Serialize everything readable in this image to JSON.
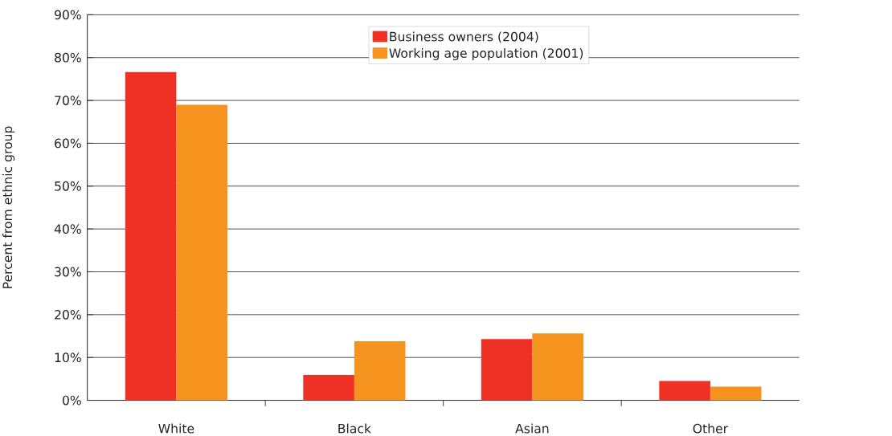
{
  "chart_data": {
    "type": "bar",
    "ylabel": "Percent from ethnic group",
    "categories": [
      "White",
      "Black",
      "Asian",
      "Other"
    ],
    "series": [
      {
        "name": "Business owners (2004)",
        "color": "#ee3124",
        "values": [
          76.6,
          5.9,
          14.3,
          4.5
        ]
      },
      {
        "name": "Working age population (2001)",
        "color": "#f6921e",
        "values": [
          69.0,
          13.8,
          15.6,
          3.2
        ]
      }
    ],
    "ylim": [
      0,
      90
    ],
    "yticks": [
      {
        "value": 0,
        "label": "0%"
      },
      {
        "value": 10,
        "label": "10%"
      },
      {
        "value": 20,
        "label": "20%"
      },
      {
        "value": 30,
        "label": "30%"
      },
      {
        "value": 40,
        "label": "40%"
      },
      {
        "value": 50,
        "label": "50%"
      },
      {
        "value": 60,
        "label": "60%"
      },
      {
        "value": 70,
        "label": "70%"
      },
      {
        "value": 80,
        "label": "80%"
      },
      {
        "value": 90,
        "label": "90%"
      }
    ],
    "grid": "y",
    "legend": "top"
  }
}
